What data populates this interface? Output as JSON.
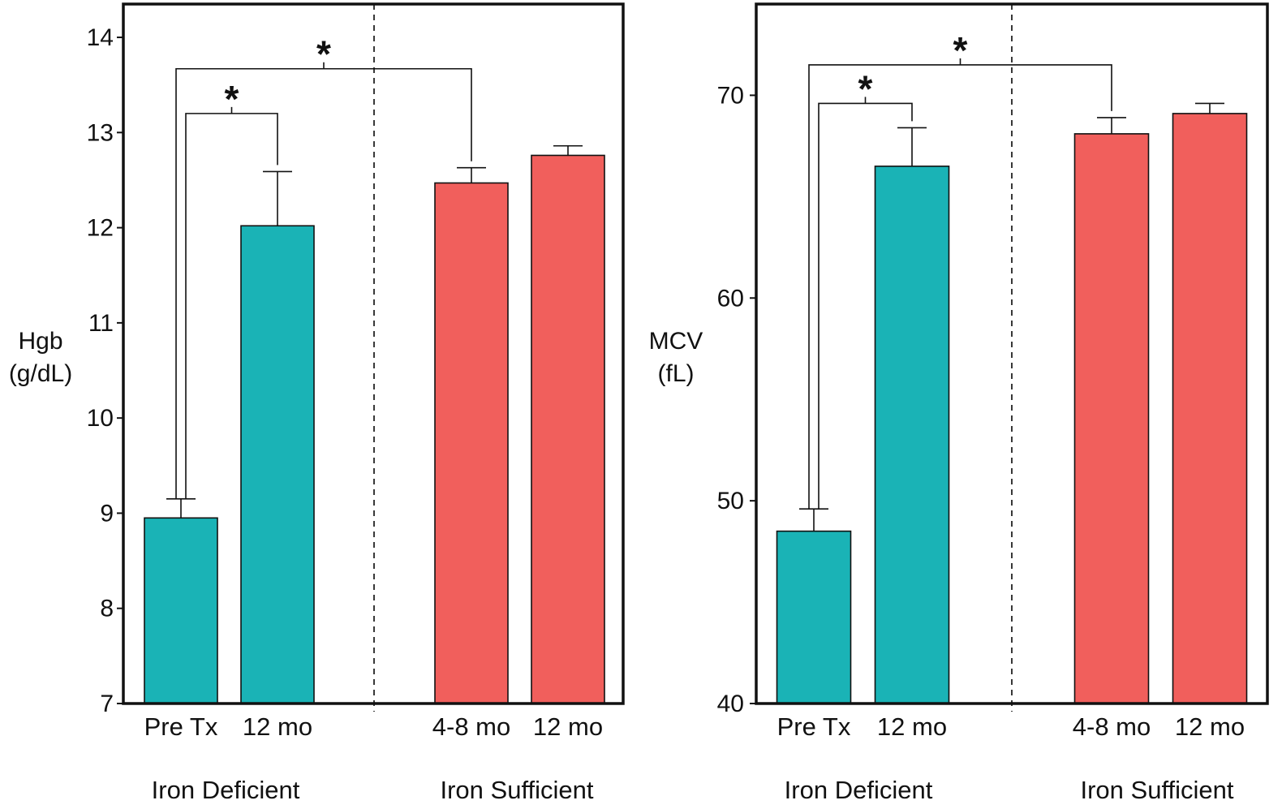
{
  "chart_data": [
    {
      "type": "bar",
      "ylabel_lines": [
        "Hgb",
        "(g/dL)"
      ],
      "ylim": [
        7,
        14.35
      ],
      "yticks": [
        7,
        8,
        9,
        10,
        11,
        12,
        13,
        14
      ],
      "categories": [
        "Pre Tx",
        "12 mo",
        "4-8 mo",
        "12 mo"
      ],
      "groups": [
        {
          "label": "Iron Deficient",
          "categories": [
            0,
            1
          ]
        },
        {
          "label": "Iron Sufficient",
          "categories": [
            2,
            3
          ]
        }
      ],
      "values": [
        8.95,
        12.02,
        12.47,
        12.76
      ],
      "errors": [
        0.2,
        0.57,
        0.16,
        0.1
      ],
      "bar_colors": [
        "#1ab3b6",
        "#1ab3b6",
        "#f15f5c",
        "#f15f5c"
      ],
      "significance": [
        {
          "from": 0,
          "to": 1,
          "label": "*",
          "y": 13.2
        },
        {
          "from": 0,
          "to": 2,
          "label": "*",
          "y": 13.67
        }
      ]
    },
    {
      "type": "bar",
      "ylabel_lines": [
        "MCV",
        "(fL)"
      ],
      "ylim": [
        40,
        74.5
      ],
      "yticks": [
        40,
        50,
        60,
        70
      ],
      "categories": [
        "Pre Tx",
        "12 mo",
        "4-8 mo",
        "12 mo"
      ],
      "groups": [
        {
          "label": "Iron Deficient",
          "categories": [
            0,
            1
          ]
        },
        {
          "label": "Iron Sufficient",
          "categories": [
            2,
            3
          ]
        }
      ],
      "values": [
        48.5,
        66.5,
        68.1,
        69.1
      ],
      "errors": [
        1.1,
        1.9,
        0.8,
        0.5
      ],
      "bar_colors": [
        "#1ab3b6",
        "#1ab3b6",
        "#f15f5c",
        "#f15f5c"
      ],
      "significance": [
        {
          "from": 0,
          "to": 1,
          "label": "*",
          "y": 69.6
        },
        {
          "from": 0,
          "to": 2,
          "label": "*",
          "y": 71.5
        }
      ]
    }
  ]
}
